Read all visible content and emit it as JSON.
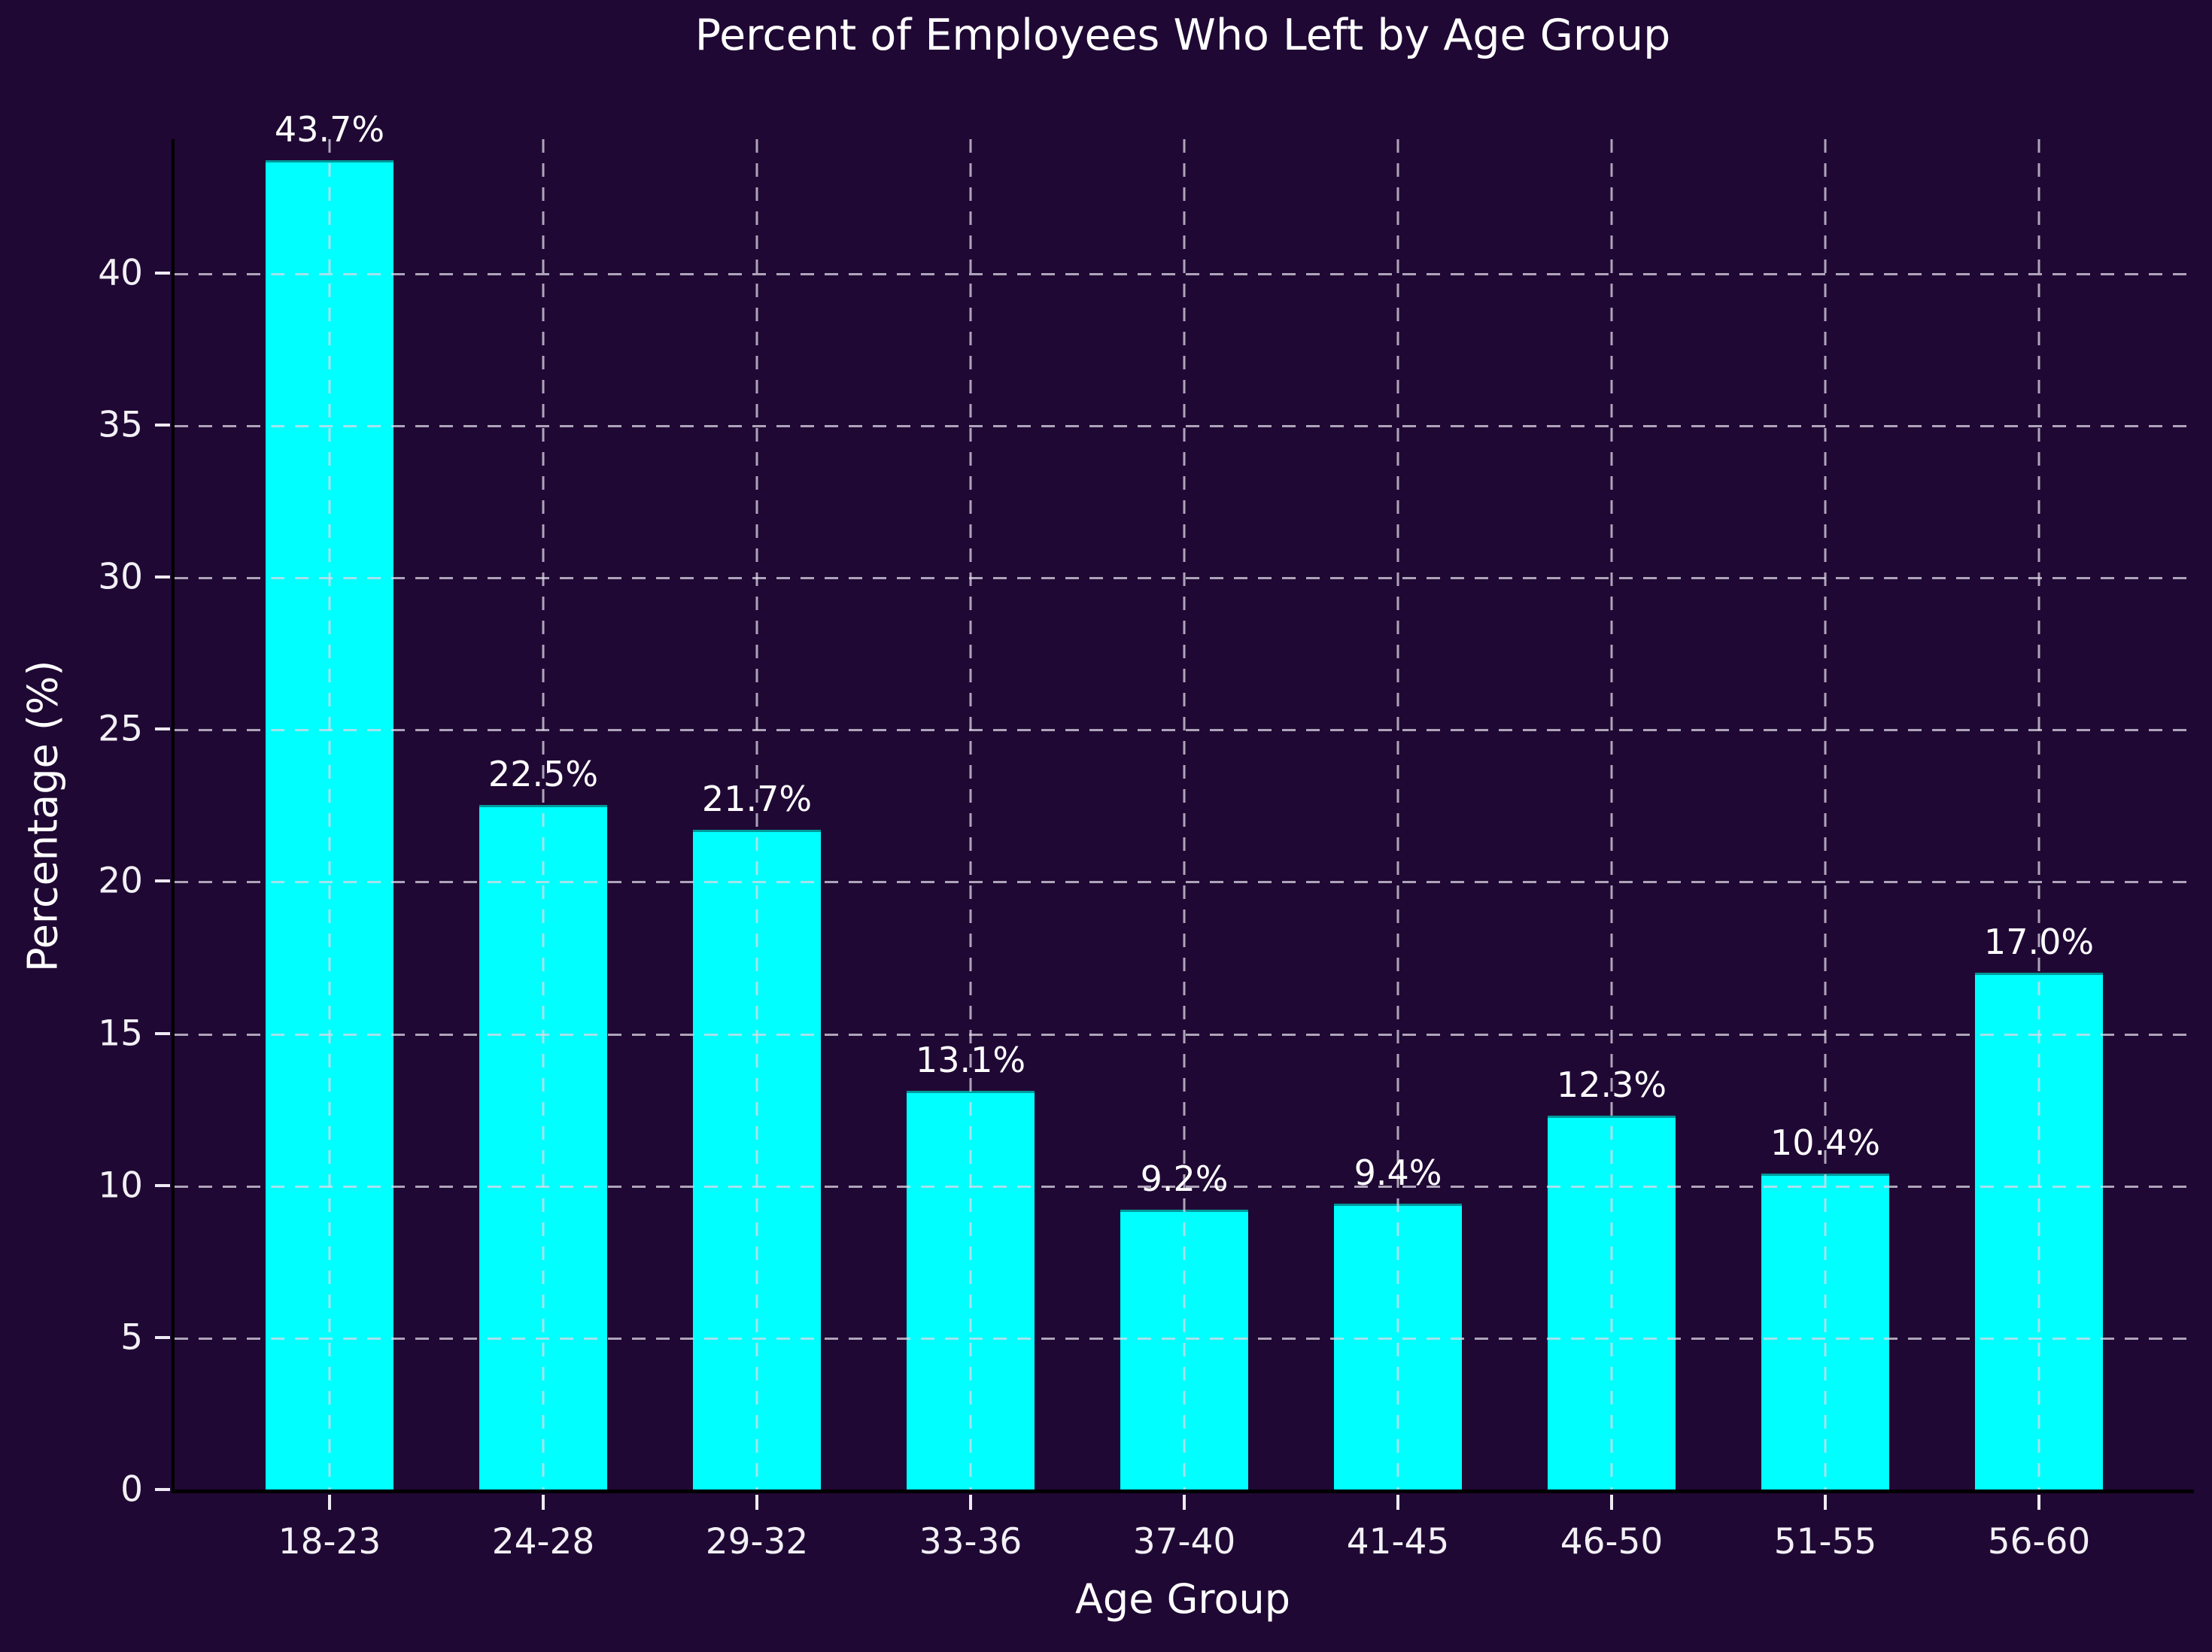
{
  "window": {
    "title": "Percent of Employees Who Left by Age Group"
  },
  "chart_data": {
    "type": "bar",
    "title": "Percent of Employees Who Left by Age Group",
    "xlabel": "Age Group",
    "ylabel": "Percentage (%)",
    "categories": [
      "18-23",
      "24-28",
      "29-32",
      "33-36",
      "37-40",
      "41-45",
      "46-50",
      "51-55",
      "56-60"
    ],
    "values": [
      43.7,
      22.5,
      21.7,
      13.1,
      9.2,
      9.4,
      12.3,
      10.4,
      17.0
    ],
    "value_labels": [
      "43.7%",
      "22.5%",
      "21.7%",
      "13.1%",
      "9.2%",
      "9.4%",
      "12.3%",
      "10.4%",
      "17.0%"
    ],
    "yticks": [
      0,
      5,
      10,
      15,
      20,
      25,
      30,
      35,
      40
    ],
    "ylim": [
      0,
      44.4
    ],
    "grid": {
      "style": "dashed",
      "axes": "both",
      "drawn_above_bars": true
    },
    "legend": "none",
    "colors": {
      "background": "#200834",
      "bar": "#00ffff",
      "text": "#ffffff",
      "tick_text": "#f2f0f5",
      "grid": "rgba(222,216,230,0.75)",
      "spine": "#000000",
      "tick_mark": "#eeeaf2"
    }
  }
}
